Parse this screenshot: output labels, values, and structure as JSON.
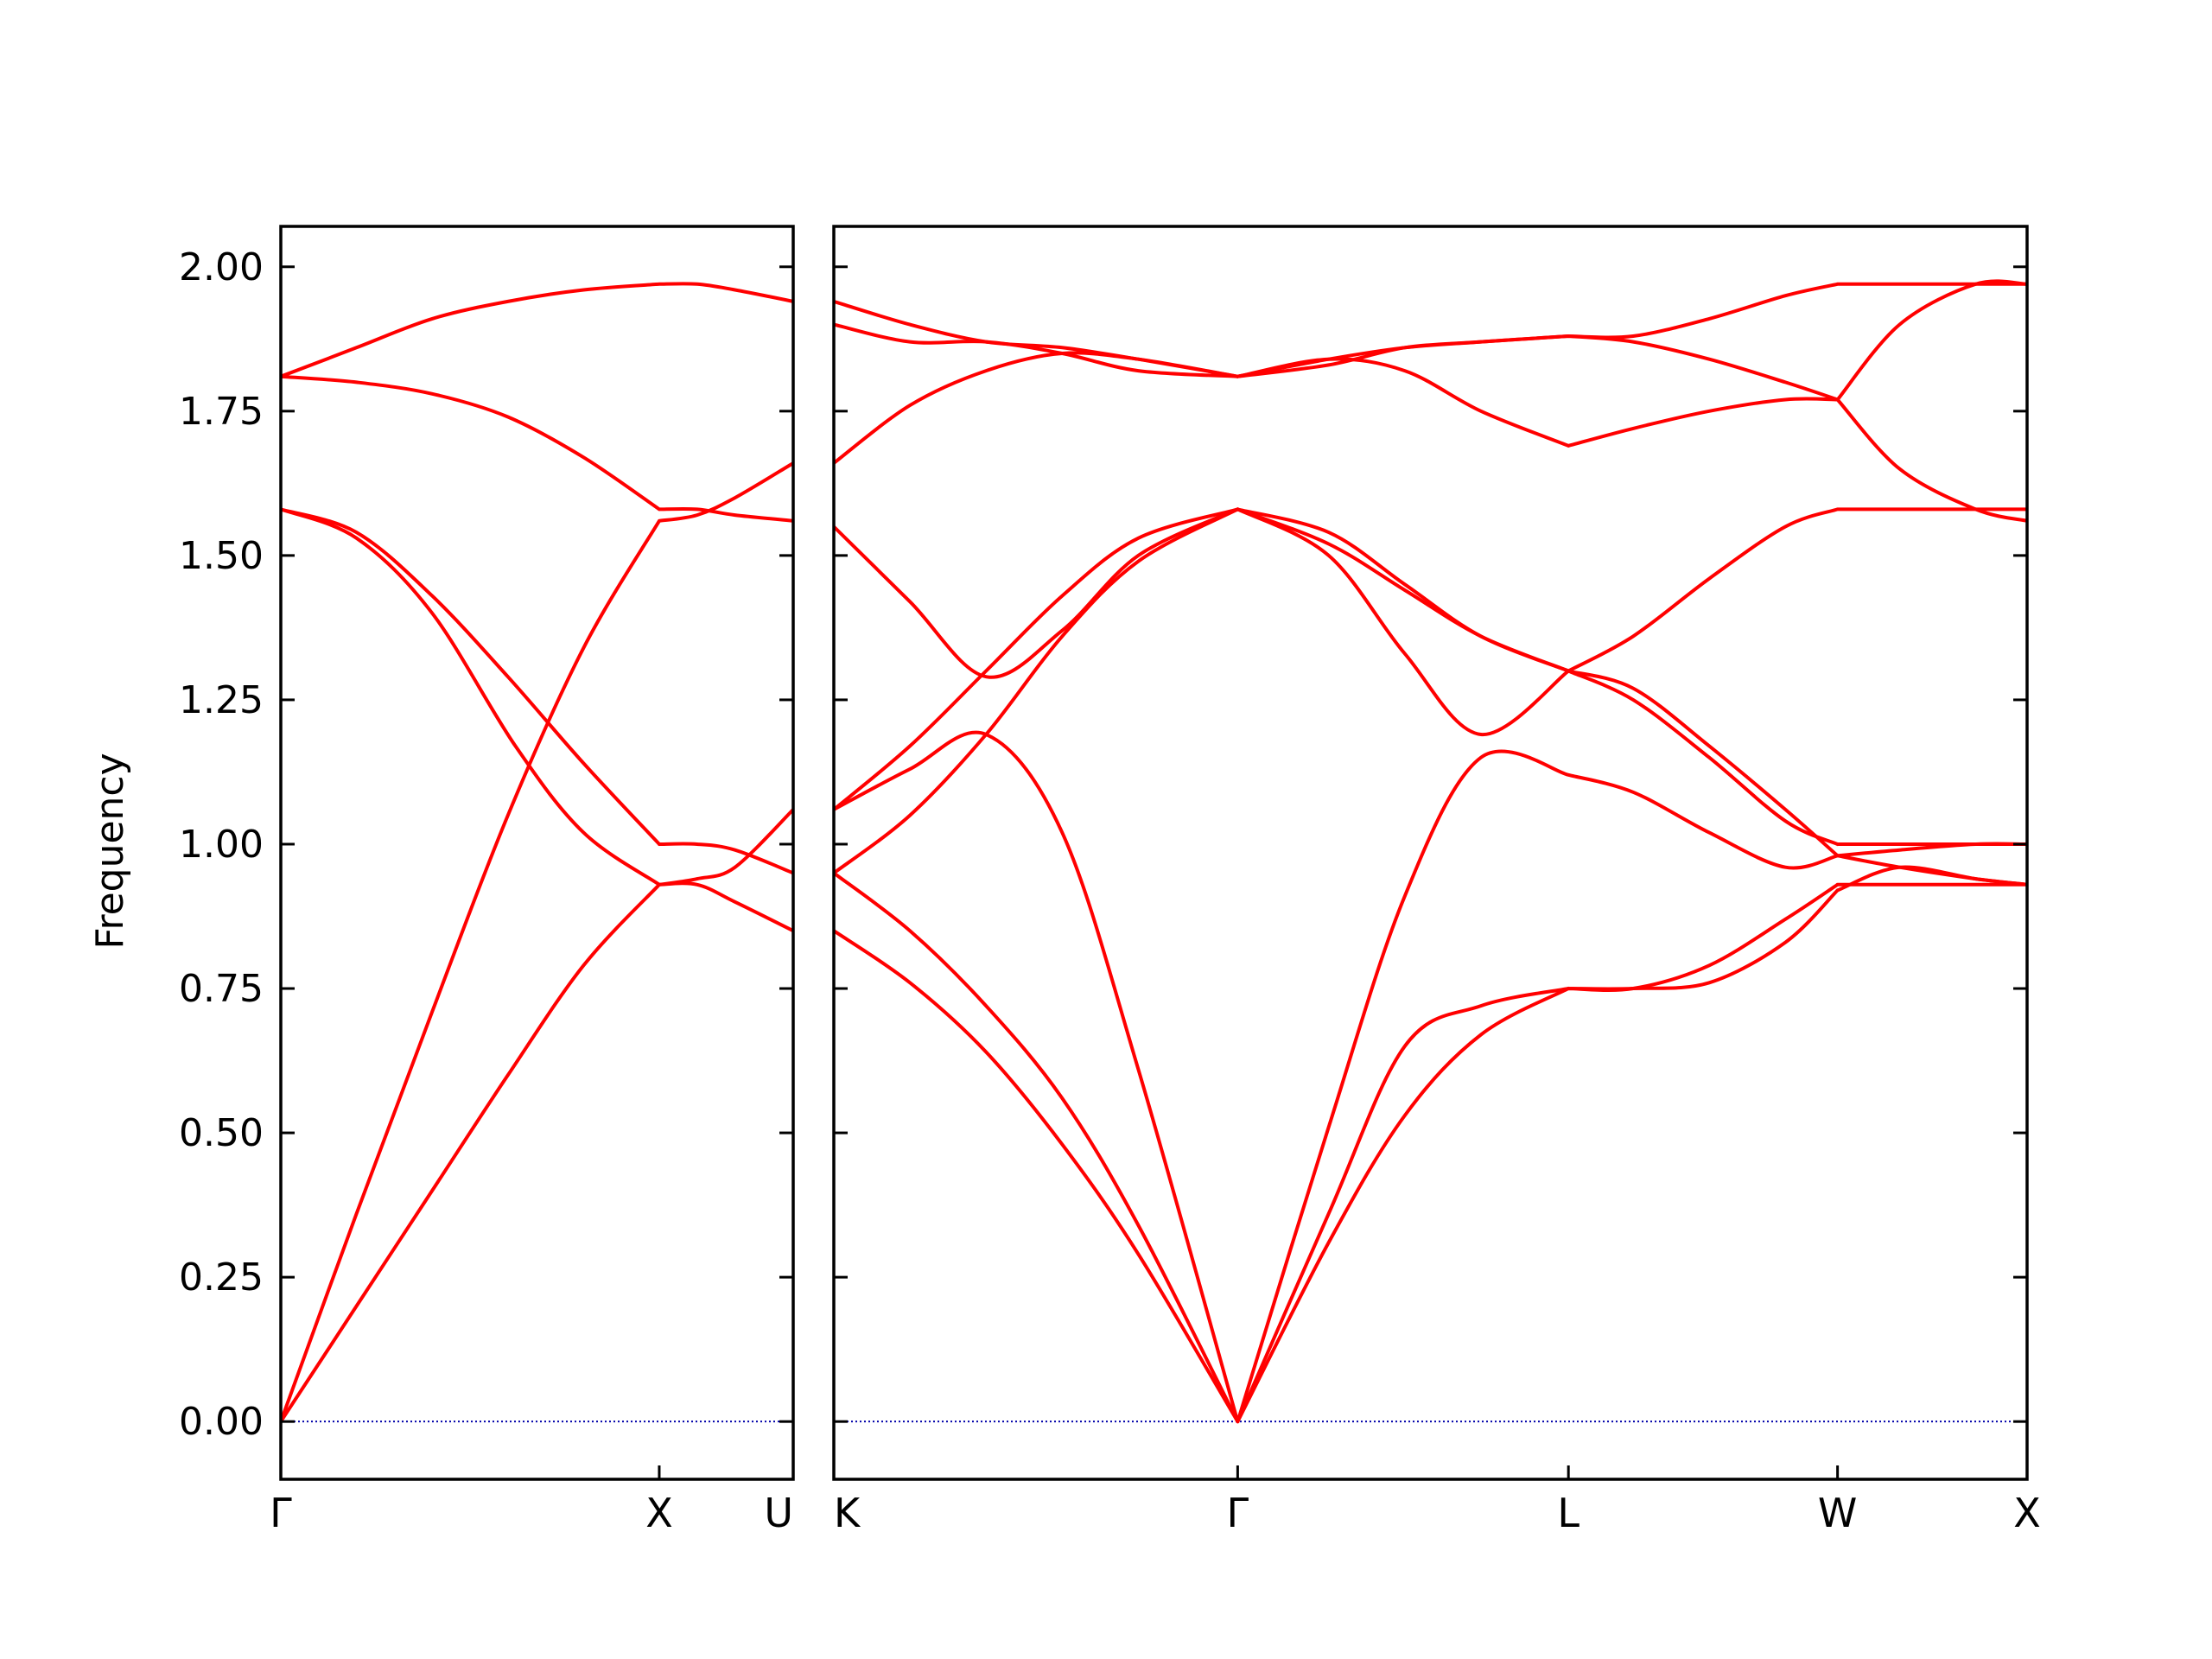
{
  "chart_data": {
    "type": "line",
    "title": "",
    "xlabel": "",
    "ylabel": "Frequency",
    "ylim": [
      -0.1,
      2.07
    ],
    "yticks": [
      "0.00",
      "0.25",
      "0.50",
      "0.75",
      "1.00",
      "1.25",
      "1.50",
      "1.75",
      "2.00"
    ],
    "grid": false,
    "legend": "none",
    "colors": {
      "bands": "#ff0000",
      "zero_line": "#0000aa",
      "axes": "#000000"
    },
    "segments": [
      {
        "labels": [
          "Γ",
          "X",
          "U"
        ],
        "xlim": [
          0,
          1.354
        ],
        "tick_positions": [
          0,
          1.0,
          1.354
        ]
      },
      {
        "labels": [
          "K",
          "Γ",
          "L",
          "W",
          "X"
        ],
        "xlim": [
          0,
          3.135
        ],
        "tick_positions": [
          0,
          1.061,
          1.93,
          2.637,
          3.135
        ]
      }
    ],
    "high_symmetry_labels": [
      "Γ",
      "X",
      "U",
      "K",
      "Γ",
      "L",
      "W",
      "X"
    ],
    "bands": [
      {
        "segment": 0,
        "x": [
          0,
          0.2,
          0.4,
          0.6,
          0.8,
          1.0,
          1.1,
          1.2,
          1.354
        ],
        "y": [
          0.0,
          0.2,
          0.4,
          0.6,
          0.79,
          0.93,
          0.93,
          0.9,
          0.85
        ]
      },
      {
        "segment": 0,
        "x": [
          0,
          0.2,
          0.4,
          0.6,
          0.8,
          1.0,
          1.1,
          1.2,
          1.354
        ],
        "y": [
          0.0,
          0.36,
          0.71,
          1.05,
          1.34,
          1.56,
          1.57,
          1.6,
          1.66
        ]
      },
      {
        "segment": 0,
        "x": [
          0,
          0.2,
          0.4,
          0.62,
          0.8,
          1.0,
          1.1,
          1.2,
          1.354
        ],
        "y": [
          1.58,
          1.53,
          1.4,
          1.17,
          1.02,
          0.93,
          0.94,
          0.96,
          1.06
        ]
      },
      {
        "segment": 0,
        "x": [
          0,
          0.2,
          0.4,
          0.6,
          0.8,
          1.0,
          1.1,
          1.2,
          1.354
        ],
        "y": [
          1.58,
          1.54,
          1.43,
          1.29,
          1.14,
          1.0,
          1.0,
          0.99,
          0.95
        ]
      },
      {
        "segment": 0,
        "x": [
          0,
          0.2,
          0.4,
          0.6,
          0.8,
          1.0,
          1.1,
          1.2,
          1.354
        ],
        "y": [
          1.81,
          1.8,
          1.78,
          1.74,
          1.67,
          1.58,
          1.58,
          1.57,
          1.56
        ]
      },
      {
        "segment": 0,
        "x": [
          0,
          0.2,
          0.4,
          0.6,
          0.8,
          1.0,
          1.1,
          1.2,
          1.354
        ],
        "y": [
          1.81,
          1.86,
          1.91,
          1.94,
          1.96,
          1.97,
          1.97,
          1.96,
          1.94
        ]
      },
      {
        "segment": 1,
        "x": [
          0,
          0.2,
          0.4,
          0.6,
          0.8,
          1.061,
          1.3,
          1.5,
          1.7,
          1.93,
          2.1,
          2.3,
          2.5,
          2.637,
          2.8,
          3.0,
          3.135
        ],
        "y": [
          0.85,
          0.76,
          0.64,
          0.48,
          0.29,
          0.0,
          0.31,
          0.53,
          0.67,
          0.75,
          0.75,
          0.79,
          0.87,
          0.93,
          0.93,
          0.93,
          0.93
        ]
      },
      {
        "segment": 1,
        "x": [
          0,
          0.2,
          0.4,
          0.6,
          0.8,
          1.061,
          1.3,
          1.5,
          1.7,
          1.93,
          2.1,
          2.3,
          2.5,
          2.637,
          2.8,
          3.0,
          3.135
        ],
        "y": [
          0.95,
          0.85,
          0.72,
          0.56,
          0.34,
          0.0,
          0.51,
          0.91,
          1.15,
          1.12,
          1.09,
          1.02,
          0.96,
          0.98,
          0.99,
          1.0,
          1.0
        ]
      },
      {
        "segment": 1,
        "x": [
          0,
          0.2,
          0.4,
          0.6,
          0.8,
          1.061,
          1.3,
          1.5,
          1.7,
          1.93,
          2.1,
          2.3,
          2.5,
          2.637,
          2.8,
          3.0,
          3.135
        ],
        "y": [
          1.06,
          1.13,
          1.19,
          1.02,
          0.61,
          0.0,
          0.36,
          0.65,
          0.72,
          0.75,
          0.75,
          0.76,
          0.83,
          0.92,
          0.96,
          0.94,
          0.93
        ]
      },
      {
        "segment": 1,
        "x": [
          0,
          0.2,
          0.4,
          0.6,
          0.8,
          1.061,
          1.3,
          1.5,
          1.7,
          1.93,
          2.1,
          2.3,
          2.5,
          2.637,
          2.8,
          3.0,
          3.135
        ],
        "y": [
          0.95,
          1.05,
          1.19,
          1.36,
          1.49,
          1.58,
          1.5,
          1.33,
          1.19,
          1.3,
          1.25,
          1.15,
          1.04,
          1.0,
          1.0,
          1.0,
          1.0
        ]
      },
      {
        "segment": 1,
        "x": [
          0,
          0.2,
          0.4,
          0.6,
          0.8,
          1.061,
          1.3,
          1.5,
          1.7,
          1.93,
          2.1,
          2.3,
          2.5,
          2.637,
          2.8,
          3.0,
          3.135
        ],
        "y": [
          1.06,
          1.17,
          1.3,
          1.43,
          1.53,
          1.58,
          1.52,
          1.44,
          1.36,
          1.3,
          1.36,
          1.46,
          1.55,
          1.58,
          1.58,
          1.58,
          1.58
        ]
      },
      {
        "segment": 1,
        "x": [
          0,
          0.2,
          0.4,
          0.6,
          0.8,
          1.061,
          1.3,
          1.5,
          1.7,
          1.93,
          2.1,
          2.3,
          2.5,
          2.637,
          2.8,
          3.0,
          3.135
        ],
        "y": [
          1.55,
          1.42,
          1.29,
          1.37,
          1.5,
          1.58,
          1.54,
          1.45,
          1.36,
          1.3,
          1.27,
          1.17,
          1.06,
          0.98,
          0.96,
          0.94,
          0.93
        ]
      },
      {
        "segment": 1,
        "x": [
          0,
          0.2,
          0.4,
          0.6,
          0.8,
          1.061,
          1.3,
          1.5,
          1.7,
          1.93,
          2.1,
          2.3,
          2.5,
          2.637,
          2.8,
          3.0,
          3.135
        ],
        "y": [
          1.66,
          1.76,
          1.82,
          1.85,
          1.84,
          1.81,
          1.84,
          1.82,
          1.75,
          1.69,
          1.72,
          1.75,
          1.77,
          1.77,
          1.65,
          1.58,
          1.56
        ]
      },
      {
        "segment": 1,
        "x": [
          0,
          0.2,
          0.4,
          0.6,
          0.8,
          1.061,
          1.3,
          1.5,
          1.7,
          1.93,
          2.1,
          2.3,
          2.5,
          2.637,
          2.8,
          3.0,
          3.135
        ],
        "y": [
          1.9,
          1.87,
          1.87,
          1.85,
          1.82,
          1.81,
          1.84,
          1.86,
          1.87,
          1.88,
          1.87,
          1.84,
          1.8,
          1.77,
          1.9,
          1.97,
          1.97
        ]
      },
      {
        "segment": 1,
        "x": [
          0,
          0.2,
          0.4,
          0.6,
          0.8,
          1.061,
          1.3,
          1.5,
          1.7,
          1.93,
          2.1,
          2.3,
          2.5,
          2.637,
          2.8,
          3.0,
          3.135
        ],
        "y": [
          1.94,
          1.9,
          1.87,
          1.86,
          1.84,
          1.81,
          1.83,
          1.86,
          1.87,
          1.88,
          1.88,
          1.91,
          1.95,
          1.97,
          1.97,
          1.97,
          1.97
        ]
      }
    ]
  }
}
